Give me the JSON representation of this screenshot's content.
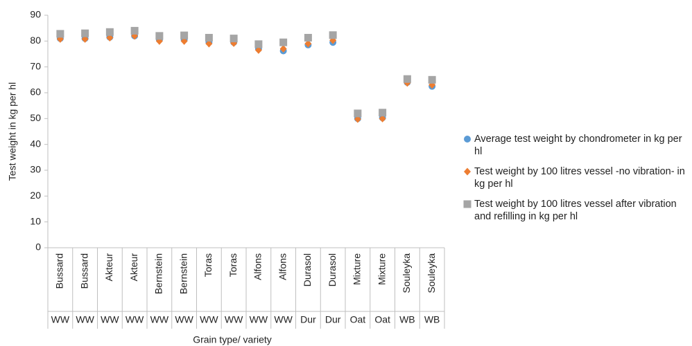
{
  "chart_data": {
    "type": "scatter",
    "xlabel": "Grain type/ variety",
    "ylabel": "Test weight in kg per hl",
    "categories": [
      "Bussard",
      "Bussard",
      "Akteur",
      "Akteur",
      "Bernstein",
      "Bernstein",
      "Toras",
      "Toras",
      "Alfons",
      "Alfons",
      "Durasol",
      "Durasol",
      "Mixture",
      "Mixture",
      "Souleyka",
      "Souleyka"
    ],
    "category_groups": [
      "WW",
      "WW",
      "WW",
      "WW",
      "WW",
      "WW",
      "WW",
      "WW",
      "WW",
      "WW",
      "Dur",
      "Dur",
      "Oat",
      "Oat",
      "WB",
      "WB"
    ],
    "series": [
      {
        "name": "Average test weight by chondrometer in kg per hl",
        "color": "#5b9bd5",
        "marker": "circle",
        "values": [
          81,
          81,
          81.5,
          82,
          80.5,
          80.5,
          79.5,
          79.5,
          77,
          76.2,
          78.5,
          79.5,
          50,
          50.3,
          64,
          62.5
        ]
      },
      {
        "name": "Test weight by 100 litres vessel -no vibration- in kg per hl",
        "color": "#ed7d31",
        "marker": "diamond",
        "values": [
          80.8,
          80.8,
          81.3,
          82,
          80,
          80,
          79,
          79.2,
          76.5,
          77,
          79,
          80.3,
          49.8,
          50,
          63.8,
          63
        ]
      },
      {
        "name": "Test weight by 100 litres vessel after vibration and refilling in kg per hl",
        "color": "#a5a5a5",
        "marker": "square",
        "values": [
          82.8,
          83,
          83.5,
          84,
          82,
          82.2,
          81.3,
          81,
          78.8,
          79.5,
          81.3,
          82.3,
          52,
          52.3,
          65.3,
          65
        ]
      }
    ],
    "ylim": [
      0,
      90
    ],
    "yticks": [
      0,
      10,
      20,
      30,
      40,
      50,
      60,
      70,
      80,
      90
    ],
    "grid": false,
    "legend": "right"
  }
}
